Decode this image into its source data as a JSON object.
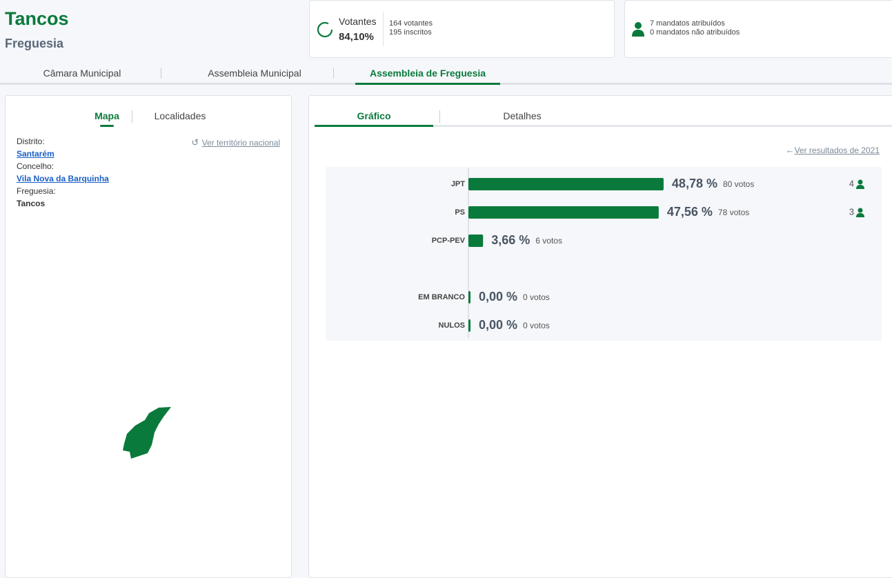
{
  "header": {
    "title": "Tancos",
    "subtitle": "Freguesia"
  },
  "turnout": {
    "label": "Votantes",
    "rate": "84,10%",
    "voters": "164 votantes",
    "registered": "195 inscritos"
  },
  "mandates_summary": {
    "assigned": "7 mandatos atribuídos",
    "unassigned": "0 mandatos não atribuídos"
  },
  "election_tabs": [
    "Câmara Municipal",
    "Assembleia Municipal",
    "Assembleia de Freguesia"
  ],
  "left_panel": {
    "tabs": [
      "Mapa",
      "Localidades"
    ],
    "reset_link": "Ver território nacional",
    "fields": [
      {
        "label": "Distrito:",
        "value": "Santarém"
      },
      {
        "label": "Concelho:",
        "value": "Vila Nova da Barquinha"
      },
      {
        "label": "Freguesia:",
        "value": "Tancos"
      }
    ]
  },
  "right_panel": {
    "tabs": [
      "Gráfico",
      "Detalhes"
    ],
    "previous_link": "Ver resultados de 2021"
  },
  "chart_data": {
    "type": "bar",
    "orientation": "horizontal",
    "categories": [
      "JPT",
      "PS",
      "PCP-PEV",
      "EM BRANCO",
      "NULOS"
    ],
    "values": [
      48.78,
      47.56,
      3.66,
      0,
      0
    ],
    "value_labels": [
      "48,78 %",
      "47,56 %",
      "3,66 %",
      "0,00 %",
      "0,00 %"
    ],
    "vote_labels": [
      "80 votos",
      "78 votos",
      "6 votos",
      "0 votos",
      "0 votos"
    ],
    "mandates": [
      4,
      3,
      null,
      null,
      null
    ],
    "color": "#0a7a3c",
    "xlim": [
      0,
      100
    ]
  }
}
